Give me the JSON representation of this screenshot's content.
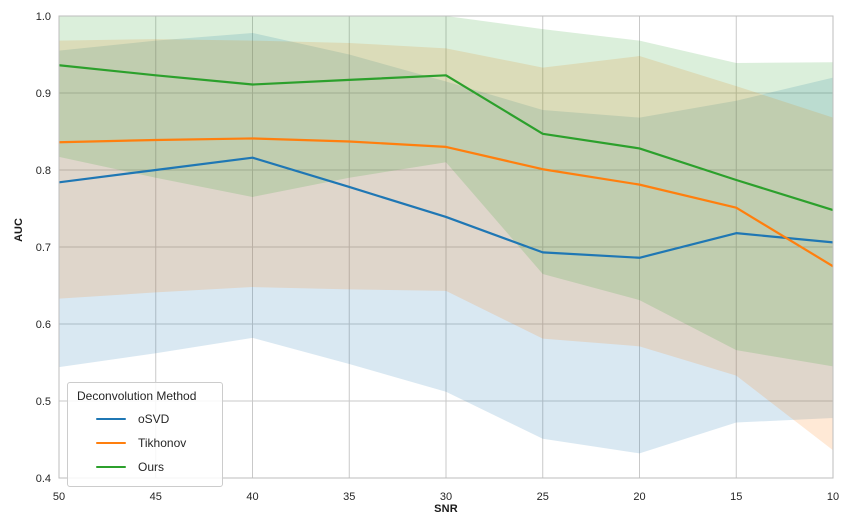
{
  "figure": {
    "xlabel": "SNR",
    "ylabel": "AUC"
  },
  "chart_data": {
    "type": "line",
    "title": "",
    "xlabel": "SNR",
    "ylabel": "AUC",
    "x": [
      50,
      45,
      40,
      35,
      30,
      25,
      20,
      15,
      10
    ],
    "x_tick_labels": [
      "50",
      "45",
      "40",
      "35",
      "30",
      "25",
      "20",
      "15",
      "10"
    ],
    "y_tick_labels": [
      "1.0",
      "0.9",
      "0.8",
      "0.7",
      "0.6",
      "0.5",
      "0.4"
    ],
    "y_ticks": [
      1.0,
      0.9,
      0.8,
      0.7,
      0.6,
      0.5,
      0.4
    ],
    "xlim": [
      50,
      10
    ],
    "ylim": [
      0.4,
      1.0
    ],
    "x_axis_reversed": true,
    "grid": true,
    "grid_color": "#c9c9c9",
    "spine_color": "#bdbdbd",
    "band_opacity": 0.17,
    "legend_title": "Deconvolution Method",
    "legend_position": "lower left",
    "series": [
      {
        "name": "oSVD",
        "color": "#1f77b4",
        "values": [
          0.784,
          0.8,
          0.816,
          0.778,
          0.739,
          0.693,
          0.686,
          0.718,
          0.706
        ],
        "band_lower": [
          0.544,
          0.562,
          0.582,
          0.548,
          0.512,
          0.451,
          0.432,
          0.472,
          0.478
        ],
        "band_upper": [
          0.955,
          0.968,
          0.978,
          0.95,
          0.915,
          0.878,
          0.868,
          0.89,
          0.92
        ]
      },
      {
        "name": "Tikhonov",
        "color": "#ff7f0e",
        "values": [
          0.836,
          0.839,
          0.841,
          0.837,
          0.83,
          0.801,
          0.781,
          0.751,
          0.675
        ],
        "band_lower": [
          0.633,
          0.641,
          0.648,
          0.645,
          0.643,
          0.581,
          0.571,
          0.533,
          0.436
        ],
        "band_upper": [
          0.968,
          0.97,
          0.968,
          0.965,
          0.958,
          0.933,
          0.948,
          0.909,
          0.868
        ]
      },
      {
        "name": "Ours",
        "color": "#2ca02c",
        "values": [
          0.936,
          0.923,
          0.911,
          0.917,
          0.923,
          0.847,
          0.828,
          0.787,
          0.748
        ],
        "band_lower": [
          0.817,
          0.79,
          0.765,
          0.79,
          0.81,
          0.665,
          0.631,
          0.566,
          0.545
        ],
        "band_upper": [
          1.0,
          1.0,
          1.0,
          1.0,
          1.0,
          0.983,
          0.968,
          0.939,
          0.94
        ]
      }
    ]
  },
  "legend": {
    "title": "Deconvolution Method",
    "items": [
      {
        "label": "oSVD",
        "color": "#1f77b4"
      },
      {
        "label": "Tikhonov",
        "color": "#ff7f0e"
      },
      {
        "label": "Ours",
        "color": "#2ca02c"
      }
    ]
  }
}
